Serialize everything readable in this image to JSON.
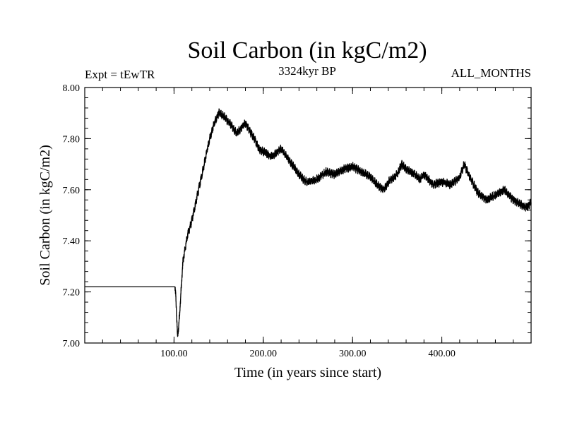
{
  "chart_data": {
    "type": "line",
    "title": "Soil Carbon (in kgC/m2)",
    "left_subtitle": "Expt = tEwTR",
    "center_subtitle": "3324kyr BP",
    "right_subtitle": "ALL_MONTHS",
    "xlabel": "Time (in years since start)",
    "ylabel": "Soil Carbon (in kgC/m2)",
    "xlim": [
      0,
      500
    ],
    "ylim": [
      7.0,
      8.0
    ],
    "xticks": [
      100,
      200,
      300,
      400
    ],
    "xtick_labels": [
      "100.00",
      "200.00",
      "300.00",
      "400.00"
    ],
    "yticks": [
      7.0,
      7.2,
      7.4,
      7.6,
      7.8,
      8.0
    ],
    "ytick_labels": [
      "7.00",
      "7.20",
      "7.40",
      "7.60",
      "7.80",
      "8.00"
    ],
    "line_color": "#000000",
    "series": [
      {
        "name": "Soil Carbon",
        "x": [
          0,
          101,
          102,
          104,
          106,
          110,
          115,
          120,
          125,
          130,
          135,
          140,
          145,
          150,
          155,
          160,
          165,
          170,
          175,
          180,
          185,
          190,
          195,
          200,
          210,
          220,
          230,
          240,
          245,
          250,
          260,
          270,
          280,
          290,
          300,
          310,
          320,
          330,
          335,
          340,
          350,
          355,
          360,
          370,
          375,
          380,
          390,
          400,
          410,
          420,
          425,
          430,
          440,
          450,
          460,
          470,
          475,
          480,
          490,
          495,
          500
        ],
        "y": [
          7.22,
          7.22,
          7.18,
          7.02,
          7.1,
          7.32,
          7.42,
          7.48,
          7.56,
          7.64,
          7.72,
          7.8,
          7.86,
          7.9,
          7.89,
          7.87,
          7.85,
          7.82,
          7.84,
          7.86,
          7.83,
          7.8,
          7.76,
          7.75,
          7.73,
          7.76,
          7.71,
          7.66,
          7.64,
          7.63,
          7.64,
          7.67,
          7.66,
          7.68,
          7.69,
          7.67,
          7.65,
          7.61,
          7.6,
          7.63,
          7.66,
          7.7,
          7.68,
          7.66,
          7.64,
          7.66,
          7.62,
          7.63,
          7.62,
          7.65,
          7.7,
          7.66,
          7.59,
          7.56,
          7.58,
          7.6,
          7.58,
          7.56,
          7.54,
          7.53,
          7.55
        ],
        "noise_amplitude": 0.012
      }
    ]
  }
}
